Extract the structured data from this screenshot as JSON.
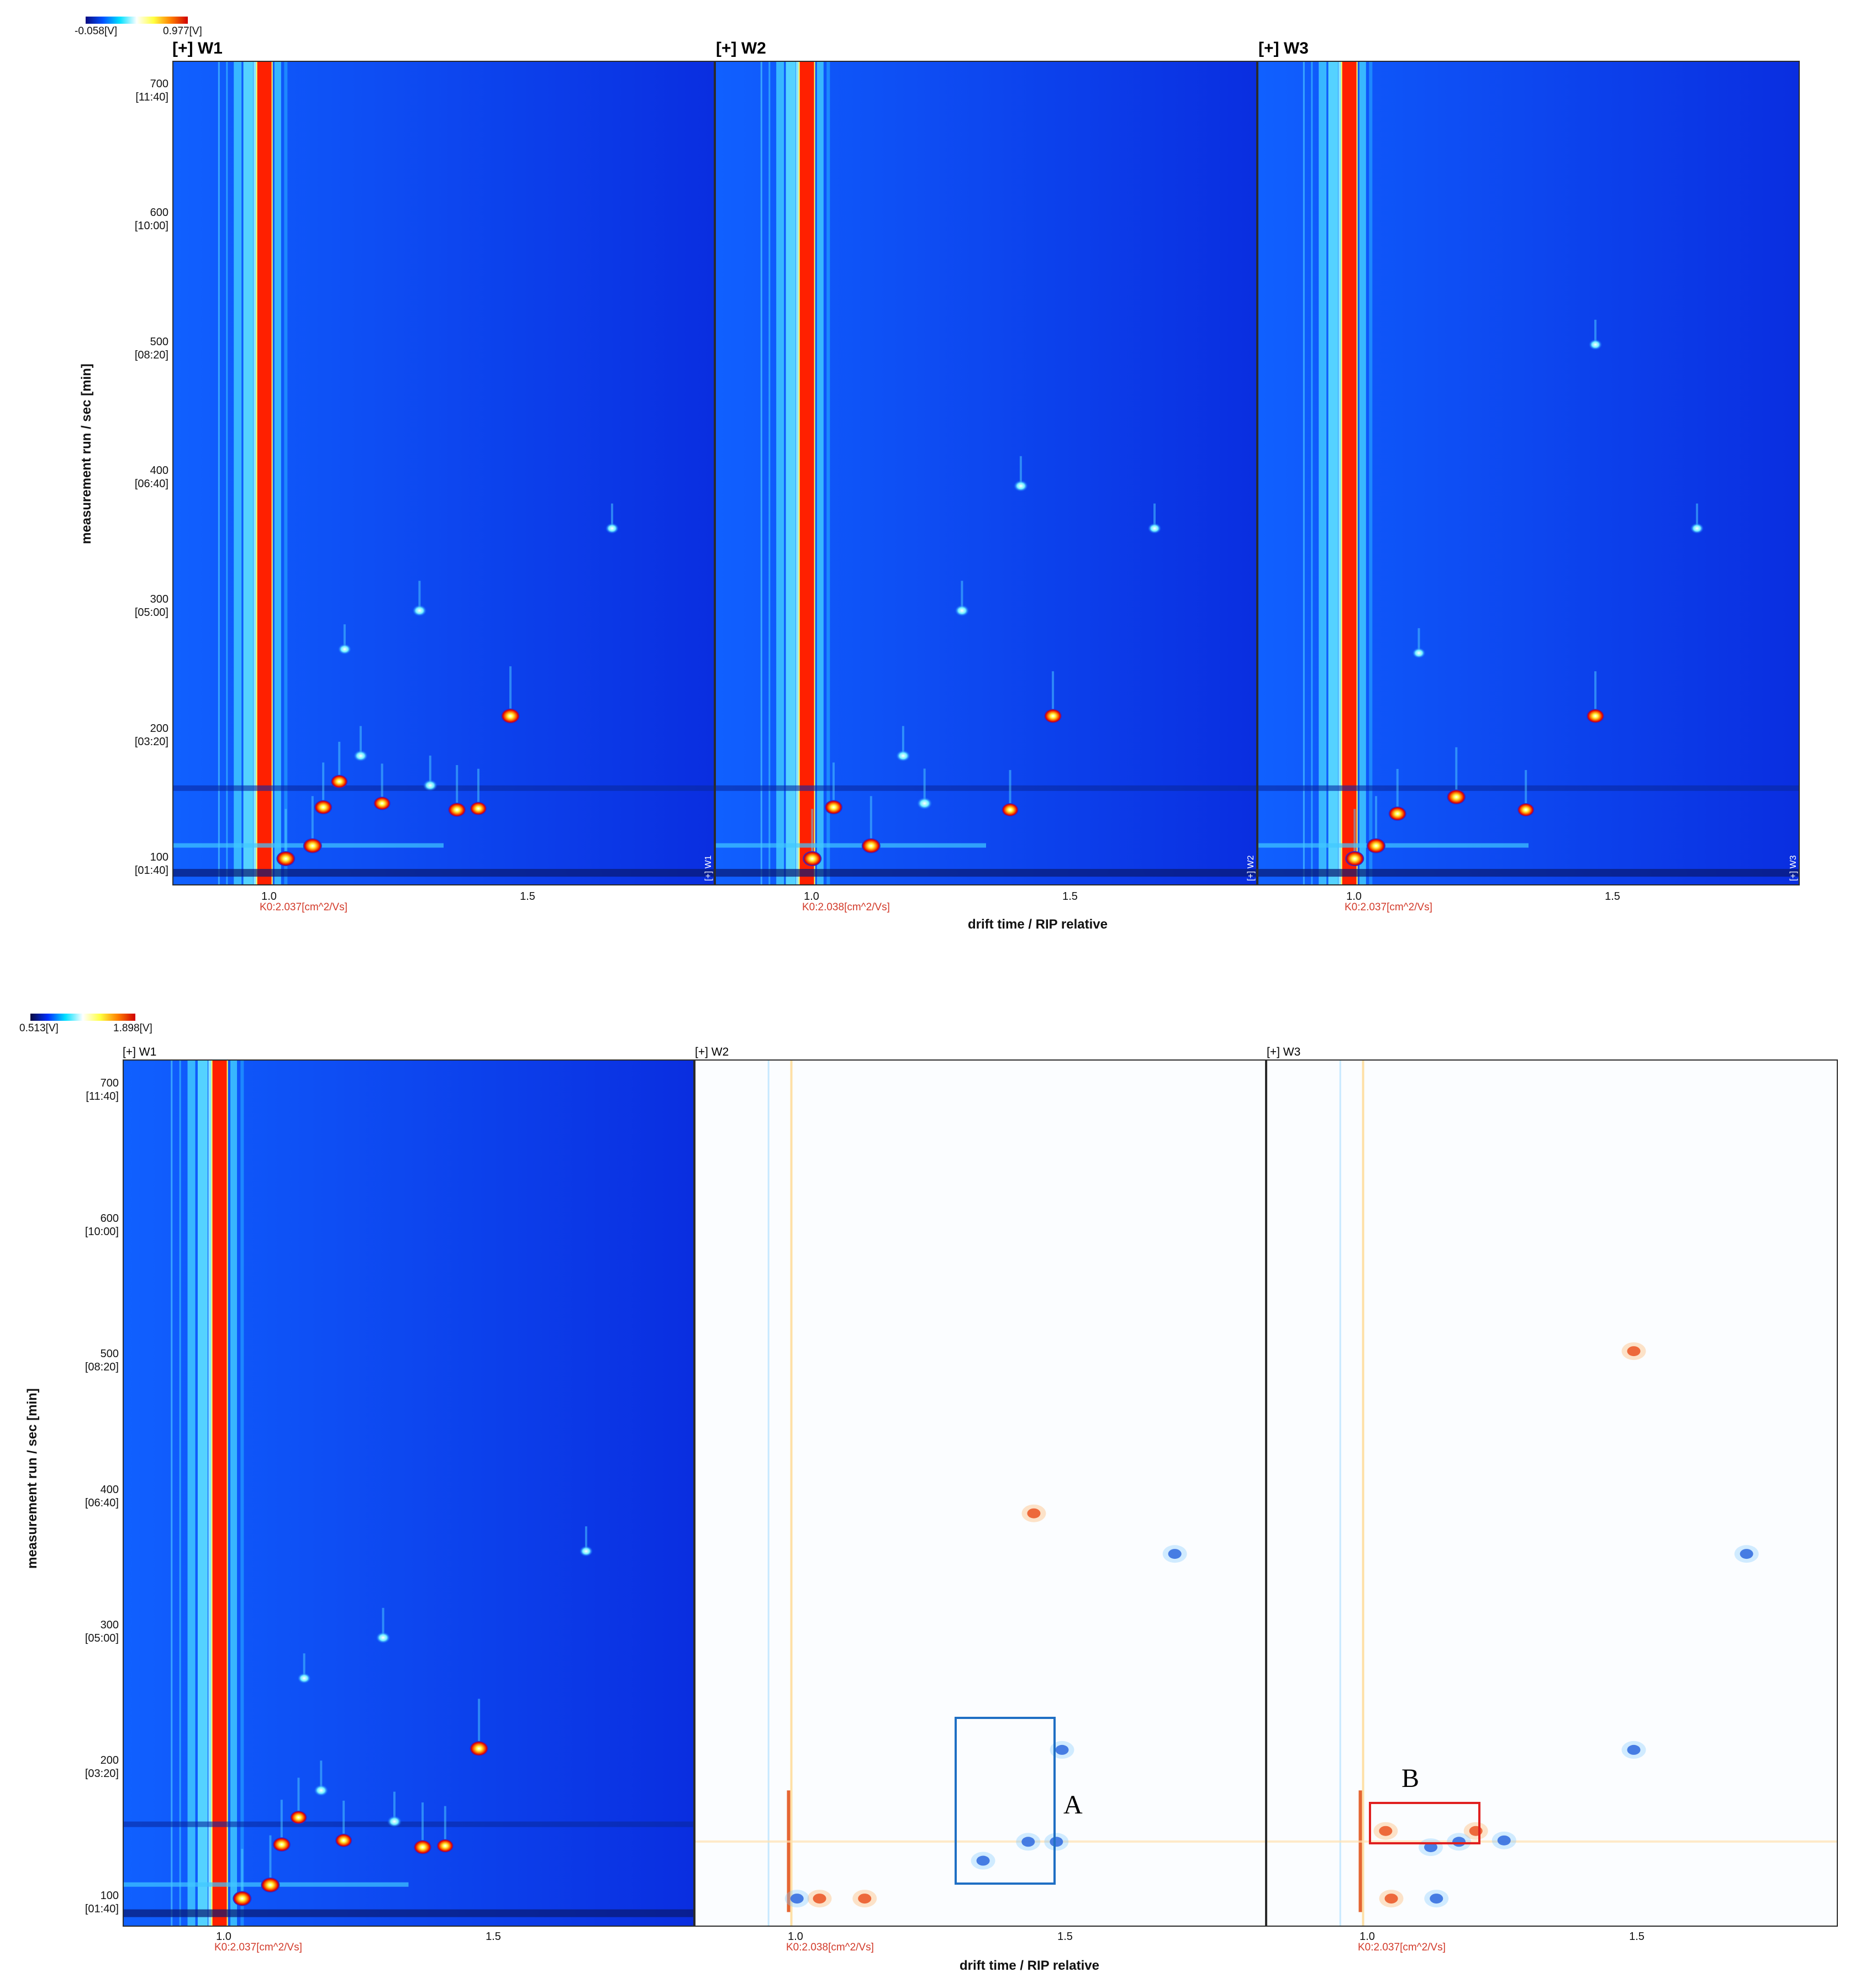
{
  "figure": {
    "top": {
      "colorbar": {
        "min_label": "-0.058[V]",
        "max_label": "0.977[V]"
      },
      "ylabel": "measurement run / sec [min]",
      "xlabel": "drift time / RIP relative",
      "yticks": [
        {
          "sec": "700",
          "min": "[11:40]"
        },
        {
          "sec": "600",
          "min": "[10:00]"
        },
        {
          "sec": "500",
          "min": "[08:20]"
        },
        {
          "sec": "400",
          "min": "[06:40]"
        },
        {
          "sec": "300",
          "min": "[05:00]"
        },
        {
          "sec": "200",
          "min": "[03:20]"
        },
        {
          "sec": "100",
          "min": "[01:40]"
        }
      ],
      "panels": [
        {
          "title": "[+] W1",
          "xtick1": "1.0",
          "xtick2": "1.5",
          "k0": "K0:2.037[cm^2/Vs]",
          "tag": "[+] W1"
        },
        {
          "title": "[+] W2",
          "xtick1": "1.0",
          "xtick2": "1.5",
          "k0": "K0:2.038[cm^2/Vs]",
          "tag": "[+] W2"
        },
        {
          "title": "[+] W3",
          "xtick1": "1.0",
          "xtick2": "1.5",
          "k0": "K0:2.037[cm^2/Vs]",
          "tag": "[+] W3"
        }
      ]
    },
    "bottom": {
      "colorbar": {
        "min_label": "0.513[V]",
        "max_label": "1.898[V]"
      },
      "ylabel": "measurement run / sec [min]",
      "xlabel": "drift time / RIP relative",
      "yticks": [
        {
          "sec": "700",
          "min": "[11:40]"
        },
        {
          "sec": "600",
          "min": "[10:00]"
        },
        {
          "sec": "500",
          "min": "[08:20]"
        },
        {
          "sec": "400",
          "min": "[06:40]"
        },
        {
          "sec": "300",
          "min": "[05:00]"
        },
        {
          "sec": "200",
          "min": "[03:20]"
        },
        {
          "sec": "100",
          "min": "[01:40]"
        }
      ],
      "panels": [
        {
          "title": "[+] W1",
          "xtick1": "1.0",
          "xtick2": "1.5",
          "k0": "K0:2.037[cm^2/Vs]"
        },
        {
          "title": "[+] W2",
          "xtick1": "1.0",
          "xtick2": "1.5",
          "k0": "K0:2.038[cm^2/Vs]"
        },
        {
          "title": "[+] W3",
          "xtick1": "1.0",
          "xtick2": "1.5",
          "k0": "K0:2.037[cm^2/Vs]"
        }
      ],
      "annotations": {
        "A": {
          "label": "A",
          "color": "#1f6fc4",
          "x_range": [
            1.3,
            1.48
          ],
          "y_range": [
            115,
            240
          ]
        },
        "B": {
          "label": "B",
          "color": "#e02020",
          "x_range": [
            1.01,
            1.21
          ],
          "y_range": [
            135,
            165
          ]
        }
      }
    }
  },
  "chart_data": [
    {
      "type": "heatmap",
      "title": "[+] W1",
      "xlabel": "drift time / RIP relative",
      "ylabel": "measurement run / sec [min]",
      "xlim": [
        0.82,
        1.83
      ],
      "ylim": [
        80,
        720
      ],
      "colorbar": [
        -0.058,
        0.977
      ],
      "ridge_x": 0.99,
      "peaks": [
        {
          "x": 1.45,
          "y": 211,
          "intensity": 1.0
        },
        {
          "x": 1.64,
          "y": 357,
          "intensity": 0.5
        },
        {
          "x": 1.28,
          "y": 293,
          "intensity": 0.6
        },
        {
          "x": 1.14,
          "y": 263,
          "intensity": 0.5
        },
        {
          "x": 1.13,
          "y": 160,
          "intensity": 0.8
        },
        {
          "x": 1.1,
          "y": 140,
          "intensity": 0.9
        },
        {
          "x": 1.08,
          "y": 110,
          "intensity": 1.0
        },
        {
          "x": 1.21,
          "y": 143,
          "intensity": 0.8
        },
        {
          "x": 1.35,
          "y": 138,
          "intensity": 0.9
        },
        {
          "x": 1.39,
          "y": 139,
          "intensity": 0.8
        },
        {
          "x": 1.3,
          "y": 157,
          "intensity": 0.6
        },
        {
          "x": 1.17,
          "y": 180,
          "intensity": 0.6
        },
        {
          "x": 1.03,
          "y": 100,
          "intensity": 1.0
        }
      ]
    },
    {
      "type": "heatmap",
      "title": "[+] W2",
      "xlabel": "drift time / RIP relative",
      "ylabel": "measurement run / sec [min]",
      "xlim": [
        0.82,
        1.83
      ],
      "ylim": [
        80,
        720
      ],
      "colorbar": [
        -0.058,
        0.977
      ],
      "ridge_x": 0.99,
      "peaks": [
        {
          "x": 1.45,
          "y": 211,
          "intensity": 0.9
        },
        {
          "x": 1.64,
          "y": 357,
          "intensity": 0.5
        },
        {
          "x": 1.39,
          "y": 390,
          "intensity": 0.6
        },
        {
          "x": 1.28,
          "y": 293,
          "intensity": 0.6
        },
        {
          "x": 1.11,
          "y": 110,
          "intensity": 1.0
        },
        {
          "x": 1.04,
          "y": 140,
          "intensity": 0.9
        },
        {
          "x": 1.21,
          "y": 143,
          "intensity": 0.7
        },
        {
          "x": 1.37,
          "y": 138,
          "intensity": 0.8
        },
        {
          "x": 1.17,
          "y": 180,
          "intensity": 0.6
        },
        {
          "x": 1.0,
          "y": 100,
          "intensity": 1.0
        }
      ]
    },
    {
      "type": "heatmap",
      "title": "[+] W3",
      "xlabel": "drift time / RIP relative",
      "ylabel": "measurement run / sec [min]",
      "xlim": [
        0.82,
        1.83
      ],
      "ylim": [
        80,
        720
      ],
      "colorbar": [
        -0.058,
        0.977
      ],
      "ridge_x": 0.99,
      "peaks": [
        {
          "x": 1.45,
          "y": 211,
          "intensity": 0.9
        },
        {
          "x": 1.64,
          "y": 357,
          "intensity": 0.5
        },
        {
          "x": 1.45,
          "y": 500,
          "intensity": 0.5
        },
        {
          "x": 1.19,
          "y": 148,
          "intensity": 1.0
        },
        {
          "x": 1.08,
          "y": 135,
          "intensity": 0.9
        },
        {
          "x": 1.04,
          "y": 110,
          "intensity": 1.0
        },
        {
          "x": 1.32,
          "y": 138,
          "intensity": 0.8
        },
        {
          "x": 1.12,
          "y": 260,
          "intensity": 0.5
        },
        {
          "x": 1.0,
          "y": 100,
          "intensity": 1.0
        }
      ]
    },
    {
      "type": "heatmap",
      "title": "[+] W1",
      "xlabel": "drift time / RIP relative",
      "ylabel": "measurement run / sec [min]",
      "xlim": [
        0.82,
        1.83
      ],
      "ylim": [
        80,
        720
      ],
      "colorbar": [
        0.513,
        1.898
      ],
      "ridge_x": 0.99
    },
    {
      "type": "heatmap",
      "title": "[+] W2",
      "xlabel": "drift time / RIP relative",
      "xlim": [
        0.82,
        1.83
      ],
      "ylim": [
        80,
        720
      ],
      "difference_spots": [
        {
          "x": 1.47,
          "y": 210,
          "sign": "lower"
        },
        {
          "x": 1.42,
          "y": 385,
          "sign": "higher"
        },
        {
          "x": 1.67,
          "y": 355,
          "sign": "lower"
        },
        {
          "x": 1.41,
          "y": 142,
          "sign": "lower"
        },
        {
          "x": 1.46,
          "y": 142,
          "sign": "lower"
        },
        {
          "x": 1.33,
          "y": 128,
          "sign": "lower"
        },
        {
          "x": 1.04,
          "y": 100,
          "sign": "higher"
        },
        {
          "x": 1.12,
          "y": 100,
          "sign": "higher"
        },
        {
          "x": 1.0,
          "y": 100,
          "sign": "lower"
        }
      ]
    },
    {
      "type": "heatmap",
      "title": "[+] W3",
      "xlabel": "drift time / RIP relative",
      "xlim": [
        0.82,
        1.83
      ],
      "ylim": [
        80,
        720
      ],
      "difference_spots": [
        {
          "x": 1.47,
          "y": 210,
          "sign": "lower"
        },
        {
          "x": 1.47,
          "y": 505,
          "sign": "higher"
        },
        {
          "x": 1.67,
          "y": 355,
          "sign": "lower"
        },
        {
          "x": 1.19,
          "y": 150,
          "sign": "higher"
        },
        {
          "x": 1.03,
          "y": 150,
          "sign": "higher"
        },
        {
          "x": 1.11,
          "y": 138,
          "sign": "lower"
        },
        {
          "x": 1.16,
          "y": 142,
          "sign": "lower"
        },
        {
          "x": 1.24,
          "y": 143,
          "sign": "lower"
        },
        {
          "x": 1.04,
          "y": 100,
          "sign": "higher"
        },
        {
          "x": 1.12,
          "y": 100,
          "sign": "lower"
        }
      ]
    }
  ]
}
